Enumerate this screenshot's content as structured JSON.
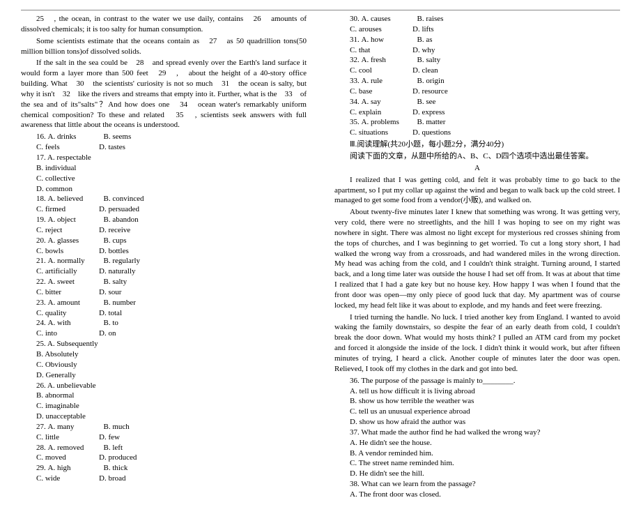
{
  "left": {
    "p1": "25　, the ocean, in contrast to the water we use daily, contains　26　amounts of dissolved chemicals; it is too salty for human consumption.",
    "p2": "Some scientists estimate that the oceans contain as　27　as 50 quadrillion tons(50 million billion tons)of dissolved solids.",
    "p3": "If the salt in the sea could be　28　and spread evenly over the Earth's land surface it would form a layer more than 500 feet　29　,　about the height of a 40-story office building. What　30　the scientists' curiosity is not so much　31　the ocean is salty, but why it isn't　32　like the rivers and streams that empty into it. Further, what is the　33　of the sea and of its\"salts\"？And how does one　34　ocean water's remarkably uniform chemical composition? To these and related　35　, scientists seek answers with full awareness that little about the oceans is understood.",
    "q16": {
      "n": "16.",
      "a": "A. drinks",
      "b": "B. seems"
    },
    "q16b": {
      "c": "C. feels",
      "d": "D. tastes"
    },
    "q17": {
      "n": "17.",
      "a": "A. respectable"
    },
    "q17b": {
      "b": "B. individual"
    },
    "q17c": {
      "c": "C. collective"
    },
    "q17d": {
      "d": "D. common"
    },
    "q18": {
      "n": "18.",
      "a": "A. believed",
      "b": "B. convinced"
    },
    "q18b": {
      "c": "C. firmed",
      "d": "D. persuaded"
    },
    "q19": {
      "n": "19.",
      "a": "A. object",
      "b": "B. abandon"
    },
    "q19b": {
      "c": "C. reject",
      "d": "D. receive"
    },
    "q20": {
      "n": "20.",
      "a": "A. glasses",
      "b": "B. cups"
    },
    "q20b": {
      "c": "C. bowls",
      "d": "D. bottles"
    },
    "q21": {
      "n": "21.",
      "a": "A. normally",
      "b": "B. regularly"
    },
    "q21b": {
      "c": "C. artificially",
      "d": "D. naturally"
    },
    "q22": {
      "n": "22.",
      "a": "A. sweet",
      "b": "B. salty"
    },
    "q22b": {
      "c": "C. bitter",
      "d": "D. sour"
    },
    "q23": {
      "n": "23.",
      "a": "A. amount",
      "b": "B. number"
    },
    "q23b": {
      "c": "C. quality",
      "d": "D. total"
    },
    "q24": {
      "n": "24.",
      "a": "A. with",
      "b": "B. to"
    },
    "q24b": {
      "c": "C. into",
      "d": "D. on"
    },
    "q25": {
      "n": "25.",
      "a": "A. Subsequently"
    },
    "q25b": {
      "b": "B. Absolutely"
    },
    "q25c": {
      "c": "C. Obviously"
    },
    "q25d": {
      "d": "D. Generally"
    },
    "q26": {
      "n": "26.",
      "a": "A. unbelievable"
    },
    "q26b": {
      "b": "B. abnormal"
    },
    "q26c": {
      "c": "C. imaginable"
    },
    "q26d": {
      "d": "D. unacceptable"
    },
    "q27": {
      "n": "27.",
      "a": "A. many",
      "b": "B. much"
    },
    "q27b": {
      "c": "C. little",
      "d": "D. few"
    },
    "q28": {
      "n": "28.",
      "a": "A. removed",
      "b": "B. left"
    },
    "q28b": {
      "c": "C. moved",
      "d": "D. produced"
    },
    "q29": {
      "n": "29.",
      "a": "A. high",
      "b": "B. thick"
    },
    "q29b": {
      "c": "C. wide",
      "d": "D. broad"
    }
  },
  "right": {
    "q30": {
      "n": "30.",
      "a": "A. causes",
      "b": "B. raises"
    },
    "q30b": {
      "c": "C. arouses",
      "d": "D. lifts"
    },
    "q31": {
      "n": "31.",
      "a": "A. how",
      "b": "B. as"
    },
    "q31b": {
      "c": "C. that",
      "d": "D. why"
    },
    "q32": {
      "n": "32.",
      "a": "A. fresh",
      "b": "B. salty"
    },
    "q32b": {
      "c": "C. cool",
      "d": "D. clean"
    },
    "q33": {
      "n": "33.",
      "a": "A. rule",
      "b": "B. origin"
    },
    "q33b": {
      "c": "C. base",
      "d": "D. resource"
    },
    "q34": {
      "n": "34.",
      "a": "A. say",
      "b": "B. see"
    },
    "q34b": {
      "c": "C. explain",
      "d": "D. express"
    },
    "q35": {
      "n": "35.",
      "a": "A. problems",
      "b": "B. matter"
    },
    "q35b": {
      "c": "C. situations",
      "d": "D. questions"
    },
    "section3_title": "Ⅲ.阅读理解(共20小题，每小题2分，满分40分)",
    "section3_sub": "阅读下面的文章，从题中所给的A、B、C、D四个选项中选出最佳答案。",
    "passageA": "A",
    "pA1": "I realized that I was getting cold, and felt it was probably time to go back to the apartment, so I put my collar up against the wind and began to walk back up the cold street. I managed to get some food from a vendor(小贩), and walked on.",
    "pA2": "About twenty-five minutes later I knew that something was wrong. It was getting very, very cold, there were no streetlights, and the hill I was hoping to see on my right was nowhere in sight. There was almost no light except for mysterious red crosses shining from the tops of churches, and I was beginning to get worried. To cut a long story short, I had walked the wrong way from a crossroads, and had wandered miles in the wrong direction. My head was aching from the cold, and I couldn't think straight. Turning around, I started back, and a long time later was outside the house I had set off from. It was at about that time I realized that I had a gate key but no house key. How happy I was when I found that the front door was open—my only piece of good luck that day. My apartment was of course locked, my head felt like it was about to explode, and my hands and feet were freezing.",
    "pA3": "I tried turning the handle. No luck. I tried another key from England. I wanted to avoid waking the family downstairs, so despite the fear of an early death from cold, I couldn't break the door down. What would my hosts think? I pulled an ATM card from my pocket and forced it alongside the inside of the lock. I didn't think it would work, but after fifteen minutes of trying, I heard a click. Another couple of minutes later the door was open. Relieved, I took off my clothes in the dark and got into bed.",
    "q36": {
      "n": "36.",
      "t": "The purpose of the passage is mainly to________."
    },
    "q36a": "A. tell us how difficult it is living abroad",
    "q36b": "B. show us how terrible the weather was",
    "q36c": "C. tell us an unusual experience abroad",
    "q36d": "D. show us how afraid the author was",
    "q37": {
      "n": "37.",
      "t": "What made the author find he had walked the wrong way?"
    },
    "q37a": "A. He didn't see the house.",
    "q37b": "B. A vendor reminded him.",
    "q37c": "C. The street name reminded him.",
    "q37d": "D. He didn't see the hill.",
    "q38": {
      "n": "38.",
      "t": "What can we learn from the passage?"
    },
    "q38a": "A. The front door was closed."
  }
}
